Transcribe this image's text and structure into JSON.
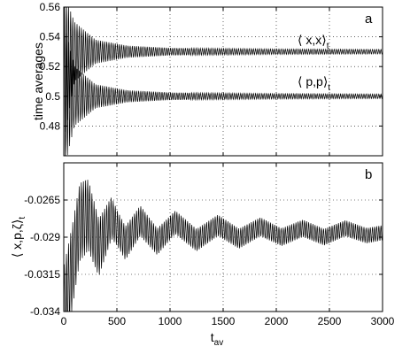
{
  "chart_data": [
    {
      "type": "line",
      "panel_label": "a",
      "ylabel": "time averages",
      "xlim": [
        0,
        3000
      ],
      "ylim": [
        0.46,
        0.56
      ],
      "yticks": [
        0.48,
        0.5,
        0.52,
        0.54,
        0.56
      ],
      "ytick_labels": [
        "0.48",
        "0.5",
        "0.52",
        "0.54",
        "0.56"
      ],
      "xticks": [
        0,
        500,
        1000,
        1500,
        2000,
        2500,
        3000
      ],
      "grid": "dotted",
      "color": "#000000",
      "series": [
        {
          "label_main": "⟨ x,x⟩",
          "label_sub": "t",
          "oscillation_period": 20,
          "envelope": [
            {
              "x": 0,
              "center": 0.52,
              "half_width": 0.05
            },
            {
              "x": 100,
              "center": 0.53,
              "half_width": 0.02
            },
            {
              "x": 300,
              "center": 0.53,
              "half_width": 0.008
            },
            {
              "x": 600,
              "center": 0.53,
              "half_width": 0.004
            },
            {
              "x": 1000,
              "center": 0.53,
              "half_width": 0.0025
            },
            {
              "x": 2000,
              "center": 0.53,
              "half_width": 0.0018
            },
            {
              "x": 3000,
              "center": 0.53,
              "half_width": 0.0015
            }
          ]
        },
        {
          "label_main": "⟨ p,p⟩",
          "label_sub": "t",
          "oscillation_period": 20,
          "envelope": [
            {
              "x": 0,
              "center": 0.5,
              "half_width": 0.05
            },
            {
              "x": 100,
              "center": 0.5,
              "half_width": 0.02
            },
            {
              "x": 300,
              "center": 0.5,
              "half_width": 0.008
            },
            {
              "x": 600,
              "center": 0.5,
              "half_width": 0.004
            },
            {
              "x": 1000,
              "center": 0.5,
              "half_width": 0.0025
            },
            {
              "x": 2000,
              "center": 0.5,
              "half_width": 0.0018
            },
            {
              "x": 3000,
              "center": 0.5,
              "half_width": 0.0015
            }
          ]
        }
      ]
    },
    {
      "type": "line",
      "panel_label": "b",
      "ylabel_main": "⟨ x,p,ζ⟩",
      "ylabel_sub": "t",
      "xlabel_main": "t",
      "xlabel_sub": "av",
      "xlim": [
        0,
        3000
      ],
      "ylim": [
        -0.034,
        -0.024
      ],
      "yticks": [
        -0.034,
        -0.0315,
        -0.029,
        -0.0265
      ],
      "ytick_labels": [
        "-0.034",
        "-0.0315",
        "-0.029",
        "-0.0265"
      ],
      "xticks": [
        0,
        500,
        1000,
        1500,
        2000,
        2500,
        3000
      ],
      "xtick_labels": [
        "0",
        "500",
        "1000",
        "1500",
        "2000",
        "2500",
        "3000"
      ],
      "grid": "dotted",
      "color": "#000000",
      "series": [
        {
          "label_main": "",
          "oscillation_period": 20,
          "slow_wave": [
            {
              "x": 0,
              "center": -0.034
            },
            {
              "x": 80,
              "center": -0.031
            },
            {
              "x": 150,
              "center": -0.028
            },
            {
              "x": 230,
              "center": -0.0275
            },
            {
              "x": 330,
              "center": -0.0297
            },
            {
              "x": 450,
              "center": -0.0277
            },
            {
              "x": 580,
              "center": -0.0294
            },
            {
              "x": 720,
              "center": -0.0279
            },
            {
              "x": 880,
              "center": -0.0293
            },
            {
              "x": 1050,
              "center": -0.028
            },
            {
              "x": 1250,
              "center": -0.0292
            },
            {
              "x": 1450,
              "center": -0.0282
            },
            {
              "x": 1650,
              "center": -0.0291
            },
            {
              "x": 1850,
              "center": -0.0283
            },
            {
              "x": 2050,
              "center": -0.029
            },
            {
              "x": 2250,
              "center": -0.0284
            },
            {
              "x": 2450,
              "center": -0.029
            },
            {
              "x": 2650,
              "center": -0.0284
            },
            {
              "x": 2850,
              "center": -0.0289
            },
            {
              "x": 3000,
              "center": -0.0287
            }
          ],
          "amplitude": [
            {
              "x": 0,
              "half_width": 0.003
            },
            {
              "x": 200,
              "half_width": 0.0025
            },
            {
              "x": 500,
              "half_width": 0.0012
            },
            {
              "x": 1000,
              "half_width": 0.0008
            },
            {
              "x": 2000,
              "half_width": 0.0006
            },
            {
              "x": 3000,
              "half_width": 0.0005
            }
          ]
        }
      ]
    }
  ]
}
